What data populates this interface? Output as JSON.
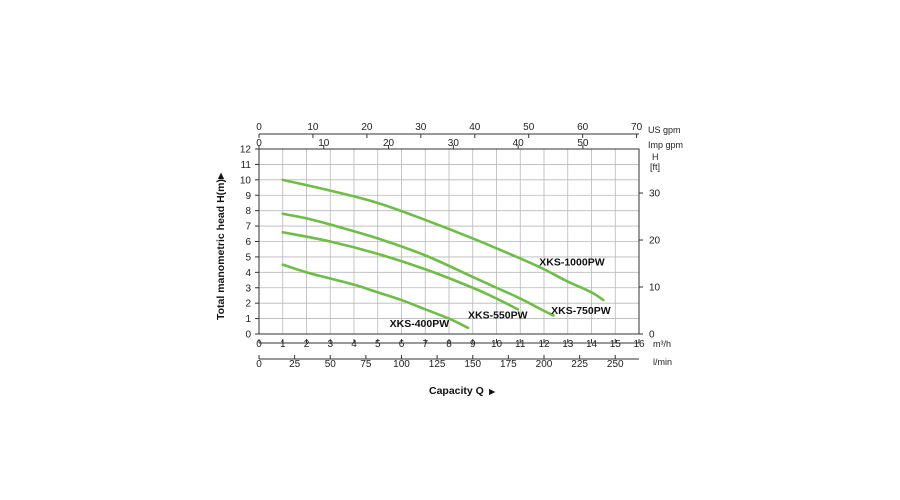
{
  "chart_data": {
    "type": "line",
    "xlabel": "Capacity Q",
    "xlabel_arrow": "►",
    "ylabel": "Total manometric head H(m)",
    "ylabel_arrow": "►",
    "x_unit": "m³/h",
    "xlim": [
      0,
      16
    ],
    "ylim": [
      0,
      12
    ],
    "grid": true,
    "x_ticks": [
      "0",
      "1",
      "2",
      "3",
      "4",
      "5",
      "6",
      "7",
      "8",
      "9",
      "10",
      "11",
      "12",
      "13",
      "14",
      "15",
      "16"
    ],
    "y_ticks": [
      "0",
      "1",
      "2",
      "3",
      "4",
      "5",
      "6",
      "7",
      "8",
      "9",
      "10",
      "11",
      "12"
    ],
    "secondary_axes": {
      "lmin": {
        "unit": "l/min",
        "ticks": [
          "0",
          "25",
          "50",
          "75",
          "100",
          "125",
          "150",
          "175",
          "200",
          "225",
          "250"
        ]
      },
      "us_gpm": {
        "unit": "US gpm",
        "ticks": [
          "0",
          "10",
          "20",
          "30",
          "40",
          "50",
          "60",
          "70"
        ]
      },
      "imp_gpm": {
        "unit": "Imp gpm",
        "ticks": [
          "0",
          "10",
          "20",
          "30",
          "40",
          "50"
        ]
      },
      "head_ft": {
        "unit_line1": "H",
        "unit_line2": "[ft]",
        "ticks": [
          "0",
          "10",
          "20",
          "30"
        ]
      }
    },
    "curve_color": "#6dbe45",
    "series": [
      {
        "name": "XKS-1000PW",
        "x": [
          1,
          3,
          5,
          7,
          9,
          11,
          12,
          13,
          14,
          14.5
        ],
        "y": [
          10,
          9.3,
          8.5,
          7.4,
          6.2,
          4.9,
          4.2,
          3.4,
          2.7,
          2.2
        ]
      },
      {
        "name": "XKS-750PW",
        "x": [
          1,
          2,
          3,
          5,
          7,
          9,
          10,
          11,
          12,
          12.4
        ],
        "y": [
          7.8,
          7.5,
          7.1,
          6.2,
          5.1,
          3.7,
          3,
          2.3,
          1.5,
          1.2
        ]
      },
      {
        "name": "XKS-550PW",
        "x": [
          1,
          3,
          5,
          7,
          9,
          10,
          10.9
        ],
        "y": [
          6.6,
          6,
          5.2,
          4.2,
          3,
          2.3,
          1.6
        ]
      },
      {
        "name": "XKS-400PW",
        "x": [
          1,
          2,
          3,
          4,
          5,
          6,
          7,
          8,
          8.8
        ],
        "y": [
          4.5,
          4,
          3.6,
          3.2,
          2.7,
          2.2,
          1.6,
          1,
          0.4
        ]
      }
    ]
  }
}
